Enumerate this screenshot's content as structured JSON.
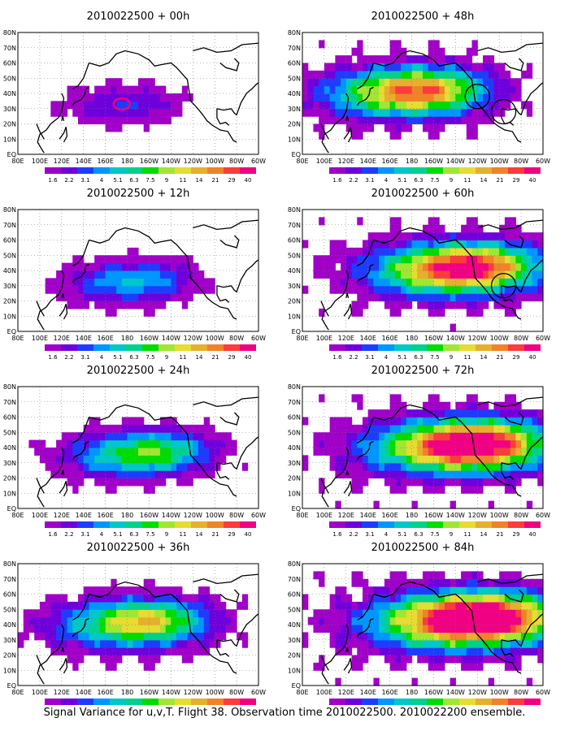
{
  "caption": "Signal Variance for u,v,T. Flight 38. Observation time 2010022500. 2010022200 ensemble.",
  "chart_data": [
    {
      "type": "heatmap",
      "title": "2010022500 + 00h",
      "level": 1.2,
      "spread": 0.45,
      "focus": [
        170,
        32
      ],
      "contour_ring": true,
      "circles": []
    },
    {
      "type": "heatmap",
      "title": "2010022500 + 12h",
      "level": 2.0,
      "spread": 0.6,
      "focus": [
        175,
        32
      ],
      "contour_ring": false,
      "circles": []
    },
    {
      "type": "heatmap",
      "title": "2010022500 + 24h",
      "level": 2.6,
      "spread": 0.75,
      "focus": [
        180,
        35
      ],
      "contour_ring": false,
      "circles": []
    },
    {
      "type": "heatmap",
      "title": "2010022500 + 36h",
      "level": 3.2,
      "spread": 0.9,
      "focus": [
        175,
        40
      ],
      "contour_ring": false,
      "circles": []
    },
    {
      "type": "heatmap",
      "title": "2010022500 + 48h",
      "level": 3.8,
      "spread": 1.0,
      "focus": [
        165,
        40
      ],
      "contour_ring": false,
      "circles": [
        [
          -120,
          38
        ],
        [
          -96,
          28
        ]
      ]
    },
    {
      "type": "heatmap",
      "title": "2010022500 + 60h",
      "level": 4.4,
      "spread": 1.1,
      "focus": [
        -150,
        40
      ],
      "contour_ring": false,
      "circles": [
        [
          -96,
          30
        ]
      ]
    },
    {
      "type": "heatmap",
      "title": "2010022500 + 72h",
      "level": 4.8,
      "spread": 1.2,
      "focus": [
        -145,
        40
      ],
      "contour_ring": false,
      "circles": []
    },
    {
      "type": "heatmap",
      "title": "2010022500 + 84h",
      "level": 5.2,
      "spread": 1.3,
      "focus": [
        -140,
        42
      ],
      "contour_ring": false,
      "circles": []
    }
  ],
  "axes": {
    "x_ticks": [
      "80E",
      "100E",
      "120E",
      "140E",
      "160E",
      "180",
      "160W",
      "140W",
      "120W",
      "100W",
      "80W",
      "60W"
    ],
    "x_values": [
      80,
      100,
      120,
      140,
      160,
      180,
      200,
      220,
      240,
      260,
      280,
      300
    ],
    "y_ticks": [
      "EQ",
      "10N",
      "20N",
      "30N",
      "40N",
      "50N",
      "60N",
      "70N",
      "80N"
    ],
    "y_values": [
      0,
      10,
      20,
      30,
      40,
      50,
      60,
      70,
      80
    ],
    "xlim": [
      80,
      300
    ],
    "ylim": [
      0,
      80
    ]
  },
  "colorbar": {
    "labels": [
      "1.6",
      "2.2",
      "3.1",
      "4",
      "5.1",
      "6.3",
      "7.5",
      "9",
      "11",
      "14",
      "21",
      "29",
      "40"
    ],
    "colors": [
      "#a000c8",
      "#6e00dc",
      "#1e3cff",
      "#0096ff",
      "#00c8c8",
      "#00d28c",
      "#00dc00",
      "#a0e632",
      "#e6dc32",
      "#e6af2d",
      "#f08228",
      "#fa3c3c",
      "#f00082"
    ]
  }
}
